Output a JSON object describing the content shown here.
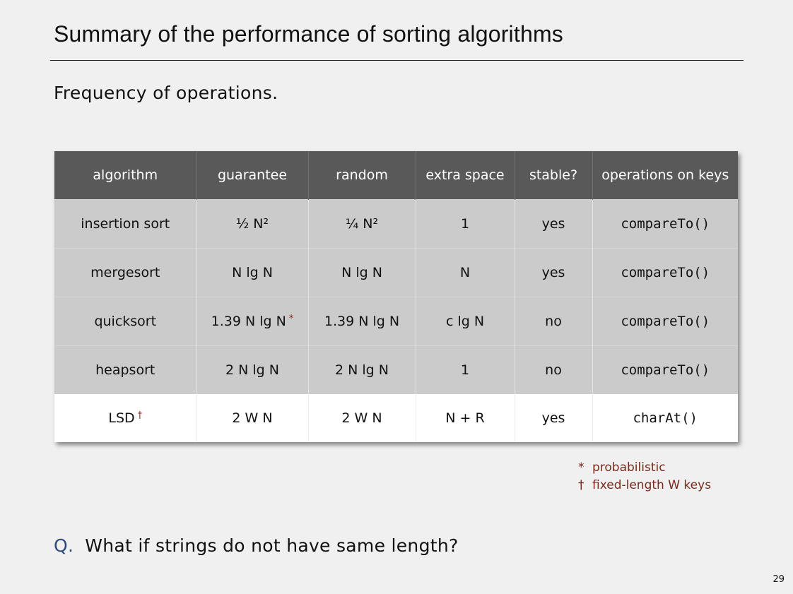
{
  "slide": {
    "title": "Summary of the performance of sorting algorithms",
    "subtitle": "Frequency of operations.",
    "page_number": "29"
  },
  "table": {
    "headers": [
      "algorithm",
      "guarantee",
      "random",
      "extra space",
      "stable?",
      "operations on keys"
    ],
    "rows": [
      [
        "insertion sort",
        "½ N²",
        "¼ N²",
        "1",
        "yes",
        "compareTo()"
      ],
      [
        "mergesort",
        "N lg N",
        "N lg N",
        "N",
        "yes",
        "compareTo()"
      ],
      [
        "quicksort",
        "1.39 N lg N",
        "1.39 N lg N",
        "c lg N",
        "no",
        "compareTo()"
      ],
      [
        "heapsort",
        "2 N lg N",
        "2 N lg N",
        "1",
        "no",
        "compareTo()"
      ],
      [
        "LSD",
        "2 W N",
        "2 W N",
        "N + R",
        "yes",
        "charAt()"
      ]
    ],
    "marks": {
      "quicksort_guarantee": "*",
      "lsd_algorithm": "†"
    },
    "highlight_row": "LSD"
  },
  "footnotes": [
    {
      "symbol": "*",
      "text": "probabilistic"
    },
    {
      "symbol": "†",
      "text": "fixed-length W keys"
    }
  ],
  "question": {
    "label": "Q.",
    "text": "What if strings do not have same length?"
  },
  "colors": {
    "header_bg": "#595959",
    "row_bg": "#cbcbcb",
    "highlight_row_bg": "#ffffff",
    "footnote": "#7a2a1a",
    "question_label": "#2e4a7a"
  }
}
